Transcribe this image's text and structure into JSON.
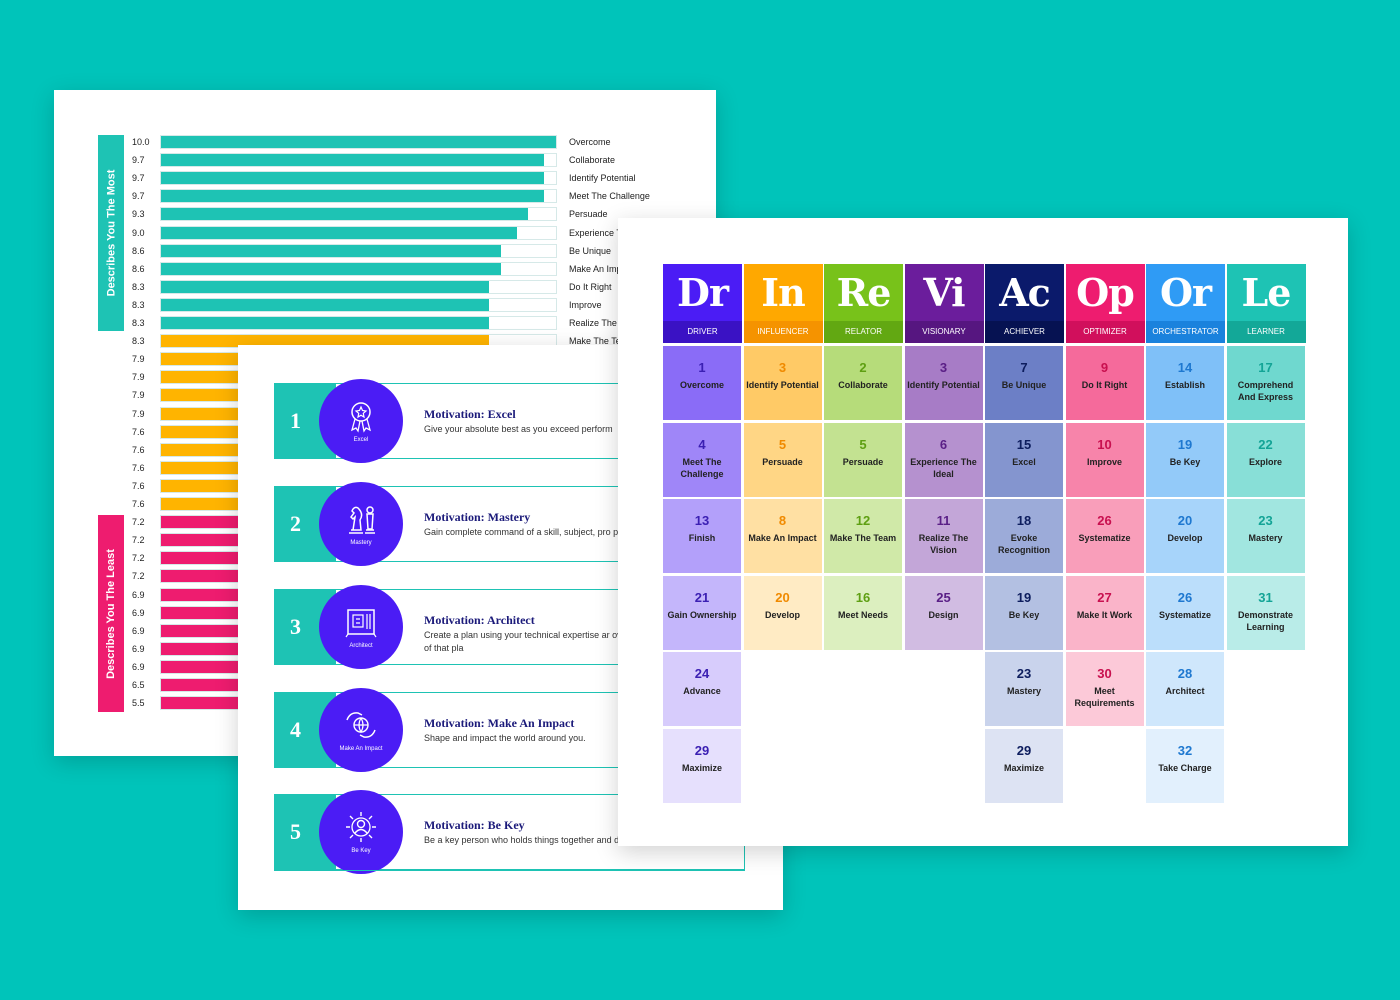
{
  "chart_sheet": {
    "side_label_most": "Describes You The Most",
    "side_label_least": "Describes You The Least",
    "bars": [
      {
        "value": "10.0",
        "label": "Overcome",
        "group": "most"
      },
      {
        "value": "9.7",
        "label": "Collaborate",
        "group": "most"
      },
      {
        "value": "9.7",
        "label": "Identify Potential",
        "group": "most"
      },
      {
        "value": "9.7",
        "label": "Meet The Challenge",
        "group": "most"
      },
      {
        "value": "9.3",
        "label": "Persuade",
        "group": "most"
      },
      {
        "value": "9.0",
        "label": "Experience T",
        "group": "most"
      },
      {
        "value": "8.6",
        "label": "Be Unique",
        "group": "most"
      },
      {
        "value": "8.6",
        "label": "Make An Imp",
        "group": "most"
      },
      {
        "value": "8.3",
        "label": "Do It Right",
        "group": "most"
      },
      {
        "value": "8.3",
        "label": "Improve",
        "group": "most"
      },
      {
        "value": "8.3",
        "label": "Realize The V",
        "group": "most"
      },
      {
        "value": "8.3",
        "label": "Make The Te",
        "group": "mid"
      },
      {
        "value": "7.9",
        "label": "",
        "group": "mid"
      },
      {
        "value": "7.9",
        "label": "",
        "group": "mid"
      },
      {
        "value": "7.9",
        "label": "",
        "group": "mid"
      },
      {
        "value": "7.9",
        "label": "",
        "group": "mid"
      },
      {
        "value": "7.6",
        "label": "",
        "group": "mid"
      },
      {
        "value": "7.6",
        "label": "",
        "group": "mid"
      },
      {
        "value": "7.6",
        "label": "",
        "group": "mid"
      },
      {
        "value": "7.6",
        "label": "",
        "group": "mid"
      },
      {
        "value": "7.6",
        "label": "",
        "group": "mid"
      },
      {
        "value": "7.2",
        "label": "",
        "group": "least"
      },
      {
        "value": "7.2",
        "label": "",
        "group": "least"
      },
      {
        "value": "7.2",
        "label": "",
        "group": "least"
      },
      {
        "value": "7.2",
        "label": "",
        "group": "least"
      },
      {
        "value": "6.9",
        "label": "",
        "group": "least"
      },
      {
        "value": "6.9",
        "label": "",
        "group": "least"
      },
      {
        "value": "6.9",
        "label": "",
        "group": "least"
      },
      {
        "value": "6.9",
        "label": "",
        "group": "least"
      },
      {
        "value": "6.9",
        "label": "",
        "group": "least"
      },
      {
        "value": "6.5",
        "label": "",
        "group": "least"
      },
      {
        "value": "5.5",
        "label": "",
        "group": "least"
      }
    ],
    "max_value": 10.0,
    "colors": {
      "most": "#1ec3b4",
      "mid": "#ffb400",
      "least": "#ee1c6f"
    }
  },
  "motivation_sheet": {
    "items": [
      {
        "number": "1",
        "icon": "award-ribbon-icon",
        "icon_label": "Excel",
        "title": "Motivation: Excel",
        "description": "Give your absolute best as you exceed perform"
      },
      {
        "number": "2",
        "icon": "chess-pieces-icon",
        "icon_label": "Mastery",
        "title": "Motivation: Mastery",
        "description": "Gain complete command of a skill, subject, pro process."
      },
      {
        "number": "3",
        "icon": "blueprint-icon",
        "icon_label": "Architect",
        "title": "Motivation: Architect",
        "description": "Create a plan using your technical expertise ar oversee specialists in the execution of that pla"
      },
      {
        "number": "4",
        "icon": "globe-hands-icon",
        "icon_label": "Make An Impact",
        "title": "Motivation: Make An Impact",
        "description": "Shape and impact the world around you."
      },
      {
        "number": "5",
        "icon": "person-focus-icon",
        "icon_label": "Be Key",
        "title": "Motivation: Be Key",
        "description": "Be a key person who holds things together and direction to the work."
      }
    ]
  },
  "table_sheet": {
    "columns": [
      {
        "symbol": "Dr",
        "name": "DRIVER",
        "color": "#4b1cf5",
        "dark": "#3a12c4",
        "text": "#3b1fb3",
        "cells": [
          {
            "n": "1",
            "l": "Overcome"
          },
          {
            "n": "4",
            "l": "Meet The Challenge"
          },
          {
            "n": "13",
            "l": "Finish"
          },
          {
            "n": "21",
            "l": "Gain Ownership"
          },
          {
            "n": "24",
            "l": "Advance"
          },
          {
            "n": "29",
            "l": "Maximize"
          }
        ]
      },
      {
        "symbol": "In",
        "name": "INFLUENCER",
        "color": "#ffa800",
        "dark": "#f59300",
        "text": "#f08a00",
        "cells": [
          {
            "n": "3",
            "l": "Identify Potential"
          },
          {
            "n": "5",
            "l": "Persuade"
          },
          {
            "n": "8",
            "l": "Make An Impact"
          },
          {
            "n": "20",
            "l": "Develop"
          }
        ]
      },
      {
        "symbol": "Re",
        "name": "RELATOR",
        "color": "#78c21a",
        "dark": "#62a812",
        "text": "#5e9f12",
        "cells": [
          {
            "n": "2",
            "l": "Collaborate"
          },
          {
            "n": "5",
            "l": "Persuade"
          },
          {
            "n": "12",
            "l": "Make The Team"
          },
          {
            "n": "16",
            "l": "Meet Needs"
          }
        ]
      },
      {
        "symbol": "Vi",
        "name": "VISIONARY",
        "color": "#6b1d9c",
        "dark": "#561680",
        "text": "#5a1f86",
        "cells": [
          {
            "n": "3",
            "l": "Identify Potential"
          },
          {
            "n": "6",
            "l": "Experience The Ideal"
          },
          {
            "n": "11",
            "l": "Realize The Vision"
          },
          {
            "n": "25",
            "l": "Design"
          }
        ]
      },
      {
        "symbol": "Ac",
        "name": "ACHIEVER",
        "color": "#0b1a6b",
        "dark": "#061252",
        "text": "#0d1d5e",
        "cells": [
          {
            "n": "7",
            "l": "Be Unique"
          },
          {
            "n": "15",
            "l": "Excel"
          },
          {
            "n": "18",
            "l": "Evoke Recognition"
          },
          {
            "n": "19",
            "l": "Be Key"
          },
          {
            "n": "23",
            "l": "Mastery"
          },
          {
            "n": "29",
            "l": "Maximize"
          }
        ]
      },
      {
        "symbol": "Op",
        "name": "OPTIMIZER",
        "color": "#ee1c6f",
        "dark": "#d10f5c",
        "text": "#c8104f",
        "cells": [
          {
            "n": "9",
            "l": "Do It Right"
          },
          {
            "n": "10",
            "l": "Improve"
          },
          {
            "n": "26",
            "l": "Systematize"
          },
          {
            "n": "27",
            "l": "Make It Work"
          },
          {
            "n": "30",
            "l": "Meet Requirements"
          }
        ]
      },
      {
        "symbol": "Or",
        "name": "ORCHESTRATOR",
        "color": "#2f9bf5",
        "dark": "#1a82dd",
        "text": "#1e78d0",
        "cells": [
          {
            "n": "14",
            "l": "Establish"
          },
          {
            "n": "19",
            "l": "Be Key"
          },
          {
            "n": "20",
            "l": "Develop"
          },
          {
            "n": "26",
            "l": "Systematize"
          },
          {
            "n": "28",
            "l": "Architect"
          },
          {
            "n": "32",
            "l": "Take Charge"
          }
        ]
      },
      {
        "symbol": "Le",
        "name": "LEARNER",
        "color": "#1ec3b4",
        "dark": "#13a898",
        "text": "#13a496",
        "cells": [
          {
            "n": "17",
            "l": "Comprehend And Express"
          },
          {
            "n": "22",
            "l": "Explore"
          },
          {
            "n": "23",
            "l": "Mastery"
          },
          {
            "n": "31",
            "l": "Demonstrate Learning"
          }
        ]
      }
    ],
    "cell_colors": [
      [
        "#8a6cf7",
        "#9f86f8",
        "#b3a0fa",
        "#c4b6fb",
        "#d7ccfc",
        "#e6e0fd"
      ],
      [
        "#ffca66",
        "#ffd685",
        "#ffe0a3",
        "#ffebc4"
      ],
      [
        "#b6dc7a",
        "#c3e291",
        "#d0e9a8",
        "#dcefbf"
      ],
      [
        "#a77cc6",
        "#b591cf",
        "#c3a6d8",
        "#d1bce2"
      ],
      [
        "#6c7fc6",
        "#8495cf",
        "#9cabd9",
        "#b3c0e2",
        "#c9d3ec",
        "#dde3f3"
      ],
      [
        "#f56a9b",
        "#f784aa",
        "#f99eba",
        "#fab4c9",
        "#fcc9d8"
      ],
      [
        "#7fc0f8",
        "#93caf9",
        "#a7d4fa",
        "#bbdefb",
        "#cfe7fc",
        "#e2f0fd"
      ],
      [
        "#6fd8cf",
        "#88dfd7",
        "#a1e6e0",
        "#b9ece8"
      ]
    ]
  }
}
